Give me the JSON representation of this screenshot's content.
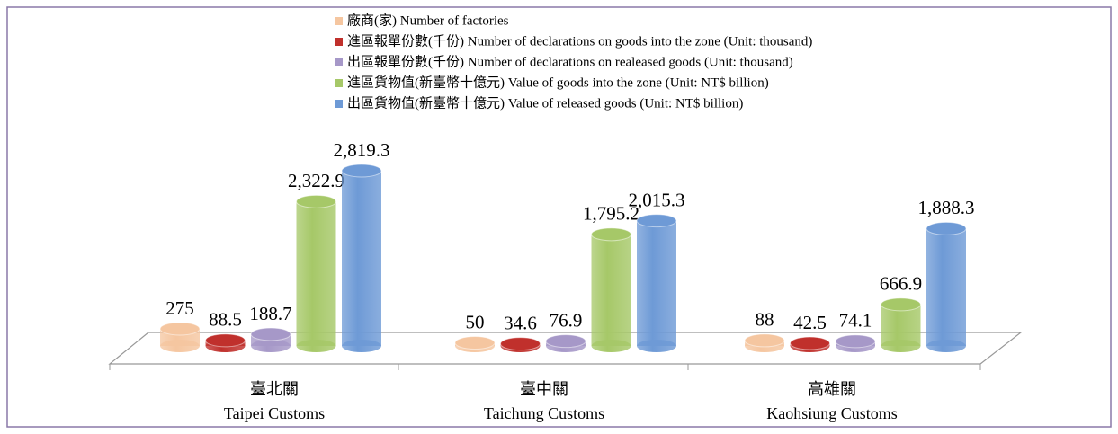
{
  "chart_data": {
    "type": "bar3d",
    "categories": [
      [
        "臺北關",
        "Taipei Customs"
      ],
      [
        "臺中關",
        "Taichung Customs"
      ],
      [
        "高雄關",
        "Kaohsiung Customs"
      ]
    ],
    "series": [
      {
        "name": "廠商(家) Number of factories",
        "color": "#f5c6a0",
        "values": [
          275,
          50,
          88
        ],
        "value_labels": [
          "275",
          "50",
          "88"
        ]
      },
      {
        "name": "進區報單份數(千份) Number of declarations on goods into the zone (Unit: thousand)",
        "color": "#c0302c",
        "values": [
          88.5,
          34.6,
          42.5
        ],
        "value_labels": [
          "88.5",
          "34.6",
          "42.5"
        ]
      },
      {
        "name": "出區報單份數(千份) Number of declarations on realeased goods (Unit: thousand)",
        "color": "#a698c8",
        "values": [
          188.7,
          76.9,
          74.1
        ],
        "value_labels": [
          "188.7",
          "76.9",
          "74.1"
        ]
      },
      {
        "name": "進區貨物值(新臺幣十億元) Value of goods into the zone (Unit: NT$ billion)",
        "color": "#a6c868",
        "values": [
          2322.9,
          1795.2,
          666.9
        ],
        "value_labels": [
          "2,322.9",
          "1,795.2",
          "666.9"
        ]
      },
      {
        "name": "出區貨物值(新臺幣十億元) Value of released goods (Unit: NT$ billion)",
        "color": "#6e9ad6",
        "values": [
          2819.3,
          2015.3,
          1888.3
        ],
        "value_labels": [
          "2,819.3",
          "2,015.3",
          "1,888.3"
        ]
      }
    ]
  }
}
